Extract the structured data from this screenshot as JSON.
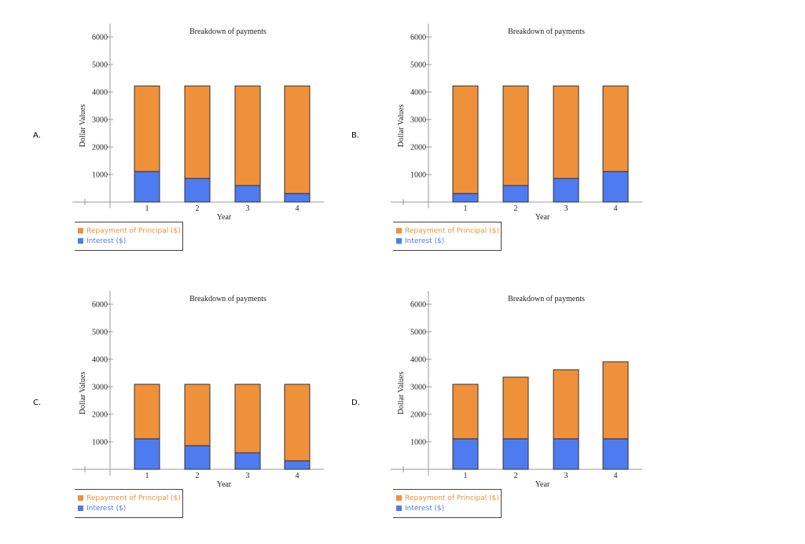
{
  "colors": {
    "principal": "#EF913A",
    "interest": "#4F7BF0"
  },
  "chart_data": [
    {
      "option": "A.",
      "type": "bar",
      "stacked": true,
      "title": "Breakdown of payments",
      "xlabel": "Year",
      "ylabel": "Dollar Values",
      "categories": [
        "1",
        "2",
        "3",
        "4"
      ],
      "ylim": [
        0,
        6500
      ],
      "yticks": [
        "1000",
        "2000",
        "3000",
        "4000",
        "5000",
        "6000"
      ],
      "series": [
        {
          "name": "Interest ($)",
          "values": [
            1110,
            860,
            600,
            310
          ]
        },
        {
          "name": "Repayment of Principal ($)",
          "values": [
            3110,
            3360,
            3620,
            3910
          ]
        }
      ]
    },
    {
      "option": "B.",
      "type": "bar",
      "stacked": true,
      "title": "Breakdown of payments",
      "xlabel": "Year",
      "ylabel": "Dollar Values",
      "categories": [
        "1",
        "2",
        "3",
        "4"
      ],
      "ylim": [
        0,
        6500
      ],
      "yticks": [
        "1000",
        "2000",
        "3000",
        "4000",
        "5000",
        "6000"
      ],
      "series": [
        {
          "name": "Interest ($)",
          "values": [
            310,
            600,
            860,
            1110
          ]
        },
        {
          "name": "Repayment of Principal ($)",
          "values": [
            3910,
            3620,
            3360,
            3110
          ]
        }
      ]
    },
    {
      "option": "C.",
      "type": "bar",
      "stacked": true,
      "title": "Breakdown of payments",
      "xlabel": "Year",
      "ylabel": "Dollar Values",
      "categories": [
        "1",
        "2",
        "3",
        "4"
      ],
      "ylim": [
        0,
        6500
      ],
      "yticks": [
        "1000",
        "2000",
        "3000",
        "4000",
        "5000",
        "6000"
      ],
      "series": [
        {
          "name": "Interest ($)",
          "values": [
            1110,
            860,
            600,
            310
          ]
        },
        {
          "name": "Repayment of Principal ($)",
          "values": [
            1980,
            2230,
            2490,
            2780
          ]
        }
      ]
    },
    {
      "option": "D.",
      "type": "bar",
      "stacked": true,
      "title": "Breakdown of payments",
      "xlabel": "Year",
      "ylabel": "Dollar Values",
      "categories": [
        "1",
        "2",
        "3",
        "4"
      ],
      "ylim": [
        0,
        6500
      ],
      "yticks": [
        "1000",
        "2000",
        "3000",
        "4000",
        "5000",
        "6000"
      ],
      "series": [
        {
          "name": "Interest ($)",
          "values": [
            1110,
            1110,
            1110,
            1110
          ]
        },
        {
          "name": "Repayment of Principal ($)",
          "values": [
            1980,
            2240,
            2510,
            2800
          ]
        }
      ]
    }
  ]
}
